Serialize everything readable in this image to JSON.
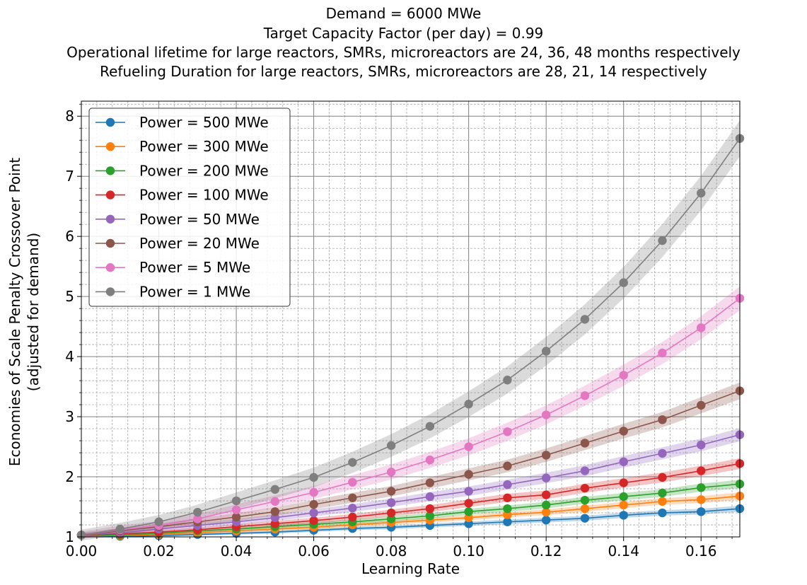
{
  "chart_data": {
    "type": "line",
    "title_lines": [
      "Demand = 6000 MWe",
      "Target Capacity Factor (per day) = 0.99",
      "Operational lifetime for large reactors, SMRs, microreactors are 24, 36, 48 months respectively",
      "Refueling Duration for large reactors, SMRs, microreactors are 28, 21, 14 respectively"
    ],
    "xlabel": "Learning Rate",
    "ylabel_lines": [
      "Economies of Scale Penalty Crossover Point",
      "(adjusted for demand)"
    ],
    "xlim": [
      0.0,
      0.17
    ],
    "ylim": [
      1.0,
      8.25
    ],
    "x_ticks": [
      "0.00",
      "0.02",
      "0.04",
      "0.06",
      "0.08",
      "0.10",
      "0.12",
      "0.14",
      "0.16"
    ],
    "y_ticks": [
      "1",
      "2",
      "3",
      "4",
      "5",
      "6",
      "7",
      "8"
    ],
    "grid": "major and minor",
    "legend_position": "upper-left",
    "x": [
      0.0,
      0.01,
      0.02,
      0.03,
      0.04,
      0.05,
      0.06,
      0.07,
      0.08,
      0.09,
      0.1,
      0.11,
      0.12,
      0.13,
      0.14,
      0.15,
      0.16,
      0.17
    ],
    "series": [
      {
        "name": "Power = 500 MWe",
        "color": "#1f77b4",
        "band": 0.05,
        "values": [
          1.03,
          1.01,
          1.02,
          1.04,
          1.06,
          1.08,
          1.11,
          1.14,
          1.16,
          1.19,
          1.22,
          1.25,
          1.28,
          1.31,
          1.36,
          1.4,
          1.42,
          1.47
        ]
      },
      {
        "name": "Power = 300 MWe",
        "color": "#ff7f0e",
        "band": 0.06,
        "values": [
          1.03,
          1.02,
          1.04,
          1.07,
          1.1,
          1.13,
          1.16,
          1.2,
          1.24,
          1.28,
          1.32,
          1.37,
          1.41,
          1.47,
          1.53,
          1.59,
          1.62,
          1.68
        ]
      },
      {
        "name": "Power = 200 MWe",
        "color": "#2ca02c",
        "band": 0.07,
        "values": [
          1.03,
          1.03,
          1.06,
          1.1,
          1.13,
          1.17,
          1.21,
          1.25,
          1.3,
          1.35,
          1.42,
          1.47,
          1.53,
          1.61,
          1.67,
          1.73,
          1.82,
          1.88
        ]
      },
      {
        "name": "Power = 100 MWe",
        "color": "#d62728",
        "band": 0.09,
        "values": [
          1.03,
          1.05,
          1.08,
          1.12,
          1.17,
          1.22,
          1.27,
          1.33,
          1.4,
          1.47,
          1.56,
          1.65,
          1.7,
          1.81,
          1.9,
          1.99,
          2.1,
          2.22
        ]
      },
      {
        "name": "Power = 50 MWe",
        "color": "#9467bd",
        "band": 0.11,
        "values": [
          1.03,
          1.07,
          1.13,
          1.19,
          1.25,
          1.32,
          1.4,
          1.48,
          1.57,
          1.67,
          1.76,
          1.87,
          1.98,
          2.1,
          2.25,
          2.39,
          2.53,
          2.7
        ]
      },
      {
        "name": "Power = 20 MWe",
        "color": "#8c564b",
        "band": 0.14,
        "values": [
          1.03,
          1.1,
          1.17,
          1.25,
          1.33,
          1.42,
          1.54,
          1.65,
          1.76,
          1.9,
          2.04,
          2.18,
          2.36,
          2.56,
          2.76,
          2.95,
          3.19,
          3.43
        ]
      },
      {
        "name": "Power = 5 MWe",
        "color": "#e377c2",
        "band": 0.2,
        "values": [
          1.03,
          1.12,
          1.19,
          1.3,
          1.45,
          1.59,
          1.74,
          1.91,
          2.08,
          2.28,
          2.5,
          2.75,
          3.03,
          3.35,
          3.69,
          4.06,
          4.48,
          4.97
        ]
      },
      {
        "name": "Power = 1 MWe",
        "color": "#7f7f7f",
        "band": 0.3,
        "values": [
          1.03,
          1.13,
          1.25,
          1.41,
          1.6,
          1.79,
          1.99,
          2.24,
          2.52,
          2.84,
          3.21,
          3.61,
          4.09,
          4.62,
          5.23,
          5.93,
          6.72,
          7.63
        ]
      }
    ]
  }
}
